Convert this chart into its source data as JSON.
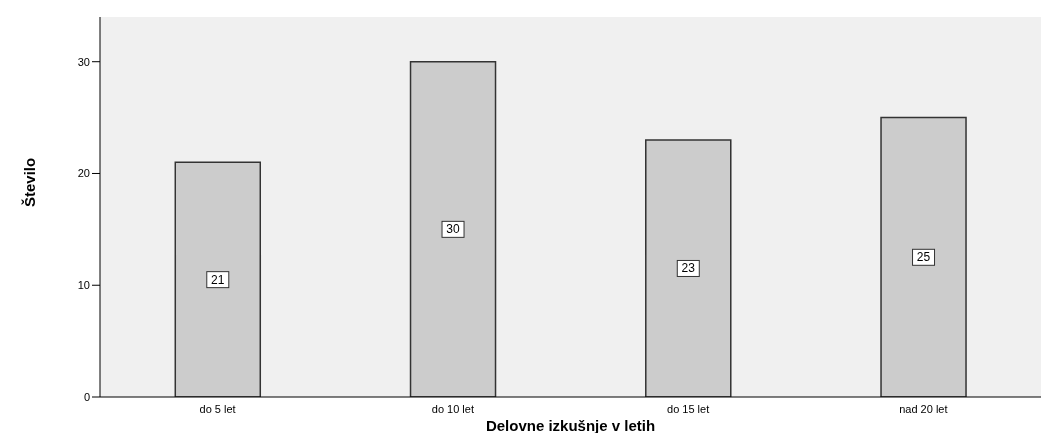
{
  "chart_data": {
    "type": "bar",
    "xlabel": "Delovne izkušnje v letih",
    "ylabel": "Število",
    "categories": [
      "do 5 let",
      "do 10 let",
      "do 15 let",
      "nad 20 let"
    ],
    "values": [
      21,
      30,
      23,
      25
    ],
    "color": "#cccccc",
    "ylim": [
      0,
      34
    ],
    "yticks": [
      0,
      10,
      20,
      30
    ],
    "grid": false,
    "data_labels": true
  }
}
